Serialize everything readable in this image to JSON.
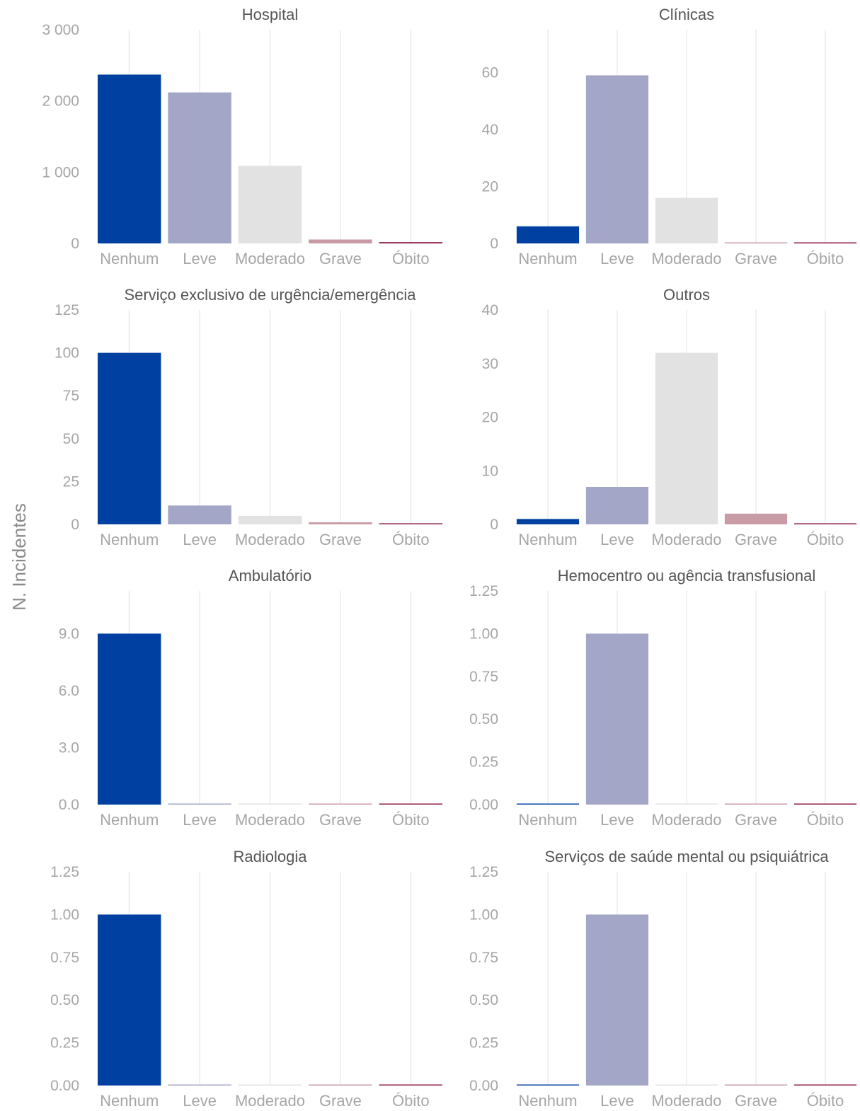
{
  "chart_data": {
    "type": "bar",
    "ylabel": "N. Incidentes",
    "categories": [
      "Nenhum",
      "Leve",
      "Moderado",
      "Grave",
      "Óbito"
    ],
    "category_colors": [
      "#0040a0",
      "#a3a6c6",
      "#e2e2e2",
      "#c99ba4",
      "#8b1a3e"
    ],
    "panels": [
      {
        "title": "Hospital",
        "values": [
          2370,
          2120,
          1090,
          55,
          18
        ],
        "ylim": [
          0,
          3000
        ],
        "yticks": [
          "0",
          "1 000",
          "2 000",
          "3 000"
        ],
        "ytick_values": [
          0,
          1000,
          2000,
          3000
        ]
      },
      {
        "title": "Clínicas",
        "values": [
          6,
          59,
          16,
          0.25,
          0.25
        ],
        "ylim": [
          0,
          75
        ],
        "yticks": [
          "0",
          "20",
          "40",
          "60"
        ],
        "ytick_values": [
          0,
          20,
          40,
          60
        ]
      },
      {
        "title": "Serviço exclusivo de urgência/emergência",
        "values": [
          100,
          11,
          5,
          1.2,
          0.4
        ],
        "ylim": [
          0,
          125
        ],
        "yticks": [
          "0",
          "25",
          "50",
          "75",
          "100",
          "125"
        ],
        "ytick_values": [
          0,
          25,
          50,
          75,
          100,
          125
        ]
      },
      {
        "title": "Outros",
        "values": [
          1,
          7,
          32,
          2,
          0.15
        ],
        "ylim": [
          0,
          40
        ],
        "yticks": [
          "0",
          "10",
          "20",
          "30",
          "40"
        ],
        "ytick_values": [
          0,
          10,
          20,
          30,
          40
        ]
      },
      {
        "title": "Ambulatório",
        "values": [
          9,
          0.04,
          0.04,
          0.04,
          0.04
        ],
        "ylim": [
          0,
          11.25
        ],
        "yticks": [
          "0.0",
          "3.0",
          "6.0",
          "9.0"
        ],
        "ytick_values": [
          0,
          3,
          6,
          9
        ]
      },
      {
        "title": "Hemocentro ou agência transfusional",
        "values": [
          0.005,
          1,
          0.005,
          0.005,
          0.005
        ],
        "ylim": [
          0,
          1.25
        ],
        "yticks": [
          "0.00",
          "0.25",
          "0.50",
          "0.75",
          "1.00",
          "1.25"
        ],
        "ytick_values": [
          0,
          0.25,
          0.5,
          0.75,
          1,
          1.25
        ]
      },
      {
        "title": "Radiologia",
        "values": [
          1,
          0.005,
          0.005,
          0.005,
          0.005
        ],
        "ylim": [
          0,
          1.25
        ],
        "yticks": [
          "0.00",
          "0.25",
          "0.50",
          "0.75",
          "1.00",
          "1.25"
        ],
        "ytick_values": [
          0,
          0.25,
          0.5,
          0.75,
          1,
          1.25
        ]
      },
      {
        "title": "Serviços de saúde mental ou psiquiátrica",
        "values": [
          0.005,
          1,
          0.005,
          0.005,
          0.005
        ],
        "ylim": [
          0,
          1.25
        ],
        "yticks": [
          "0.00",
          "0.25",
          "0.50",
          "0.75",
          "1.00",
          "1.25"
        ],
        "ytick_values": [
          0,
          0.25,
          0.5,
          0.75,
          1,
          1.25
        ]
      }
    ]
  }
}
